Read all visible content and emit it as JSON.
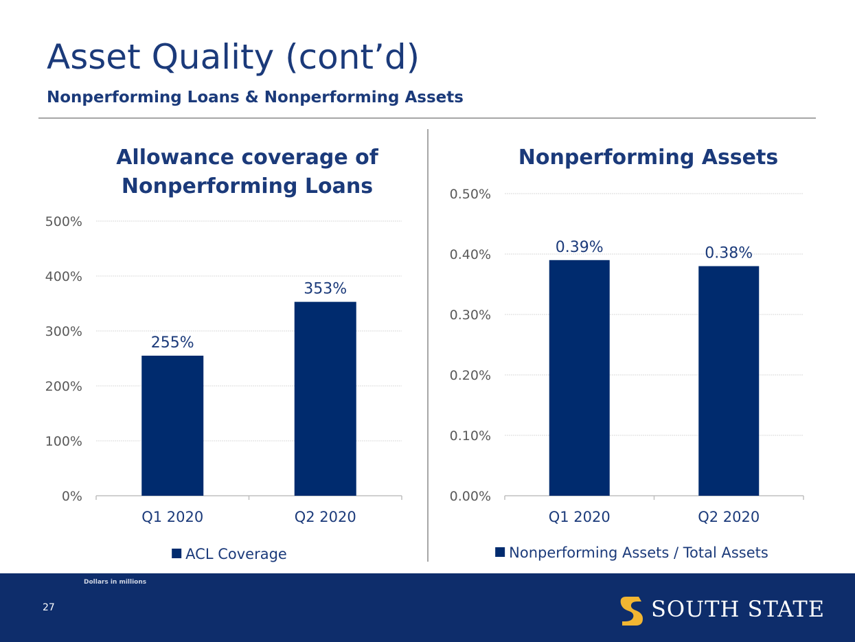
{
  "slide": {
    "title": "Asset Quality (cont’d)",
    "subtitle": "Nonperforming Loans & Nonperforming Assets",
    "footnote": "Dollars in millions",
    "page_number": "27",
    "logo_text": "SOUTH STATE"
  },
  "colors": {
    "bar": "#002b6e",
    "title": "#1b3a7a",
    "footer": "#0e2d6b",
    "logo_mark": "#f2b632"
  },
  "chart_data": [
    {
      "type": "bar",
      "title_lines": [
        "Allowance coverage of",
        "Nonperforming Loans"
      ],
      "categories": [
        "Q1 2020",
        "Q2 2020"
      ],
      "series": [
        {
          "name": "ACL Coverage",
          "values": [
            255,
            353
          ]
        }
      ],
      "data_labels": [
        "255%",
        "353%"
      ],
      "ylim": [
        0,
        500
      ],
      "yticks": [
        0,
        100,
        200,
        300,
        400,
        500
      ],
      "ytick_labels": [
        "0%",
        "100%",
        "200%",
        "300%",
        "400%",
        "500%"
      ],
      "grid": true,
      "legend": "bottom"
    },
    {
      "type": "bar",
      "title_lines": [
        "Nonperforming Assets"
      ],
      "categories": [
        "Q1 2020",
        "Q2 2020"
      ],
      "series": [
        {
          "name": "Nonperforming Assets / Total Assets",
          "values": [
            0.39,
            0.38
          ]
        }
      ],
      "data_labels": [
        "0.39%",
        "0.38%"
      ],
      "ylim": [
        0,
        0.5
      ],
      "yticks": [
        0,
        0.1,
        0.2,
        0.3,
        0.4,
        0.5
      ],
      "ytick_labels": [
        "0.00%",
        "0.10%",
        "0.20%",
        "0.30%",
        "0.40%",
        "0.50%"
      ],
      "grid": true,
      "legend": "bottom"
    }
  ]
}
